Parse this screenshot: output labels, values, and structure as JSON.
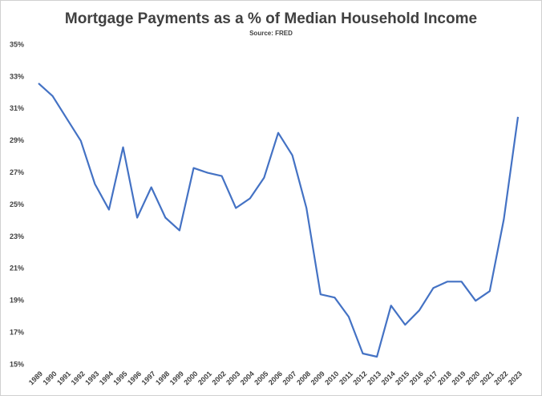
{
  "chart_data": {
    "type": "line",
    "title": "Mortgage Payments as a % of Median Household Income",
    "subtitle": "Source: FRED",
    "categories": [
      "1989",
      "1990",
      "1991",
      "1992",
      "1993",
      "1994",
      "1995",
      "1996",
      "1997",
      "1998",
      "1999",
      "2000",
      "2001",
      "2002",
      "2003",
      "2004",
      "2005",
      "2006",
      "2007",
      "2008",
      "2009",
      "2010",
      "2011",
      "2012",
      "2013",
      "2014",
      "2015",
      "2016",
      "2017",
      "2018",
      "2019",
      "2020",
      "2021",
      "2022",
      "2023"
    ],
    "values": [
      32.6,
      31.8,
      30.4,
      29.0,
      26.3,
      24.7,
      28.6,
      24.2,
      26.1,
      24.2,
      23.4,
      27.3,
      27.0,
      26.8,
      24.8,
      25.4,
      26.7,
      29.5,
      28.1,
      24.8,
      19.4,
      19.2,
      18.0,
      15.7,
      15.5,
      18.7,
      17.5,
      18.4,
      19.8,
      20.2,
      20.2,
      19.0,
      19.6,
      24.1,
      30.5
    ],
    "color": "#4472c4",
    "ylim": [
      15,
      35
    ],
    "yticks": [
      {
        "value": 15,
        "label": "15%"
      },
      {
        "value": 17,
        "label": "17%"
      },
      {
        "value": 19,
        "label": "19%"
      },
      {
        "value": 21,
        "label": "21%"
      },
      {
        "value": 23,
        "label": "23%"
      },
      {
        "value": 25,
        "label": "25%"
      },
      {
        "value": 27,
        "label": "27%"
      },
      {
        "value": 29,
        "label": "29%"
      },
      {
        "value": 31,
        "label": "31%"
      },
      {
        "value": 33,
        "label": "33%"
      },
      {
        "value": 35,
        "label": "35%"
      }
    ],
    "grid": false
  }
}
